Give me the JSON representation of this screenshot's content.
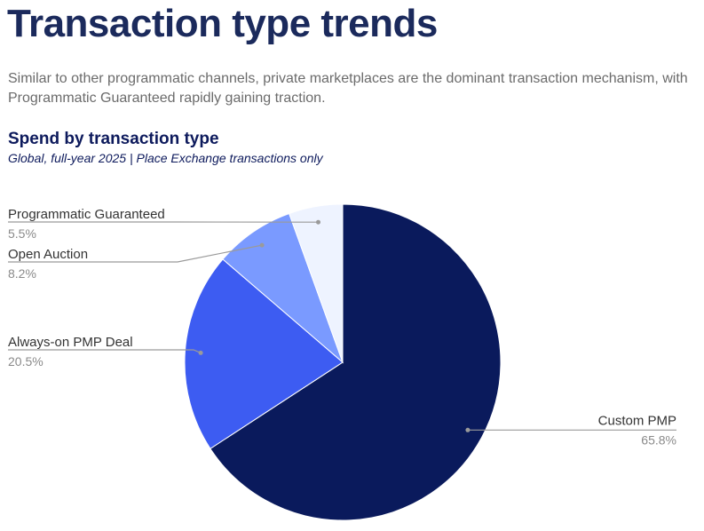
{
  "header": {
    "title": "Transaction type trends",
    "subtitle": "Similar to other programmatic channels, private marketplaces are the dominant transaction mechanism, with Programmatic Guaranteed rapidly gaining traction."
  },
  "chart_data": {
    "type": "pie",
    "title": "Spend by transaction type",
    "subtitle": "Global, full-year 2025  | Place Exchange transactions only",
    "categories": [
      "Custom PMP",
      "Always-on PMP Deal",
      "Open Auction",
      "Programmatic Guaranteed"
    ],
    "values": [
      65.8,
      20.5,
      8.2,
      5.5
    ],
    "value_labels": [
      "65.8%",
      "20.5%",
      "8.2%",
      "5.5%"
    ],
    "colors": [
      "#0a1a5c",
      "#3d5cf2",
      "#7a9aff",
      "#eef3ff"
    ],
    "start_angle_deg": 0,
    "direction": "clockwise",
    "legend": "none",
    "label_placement": "outside with leader lines"
  }
}
